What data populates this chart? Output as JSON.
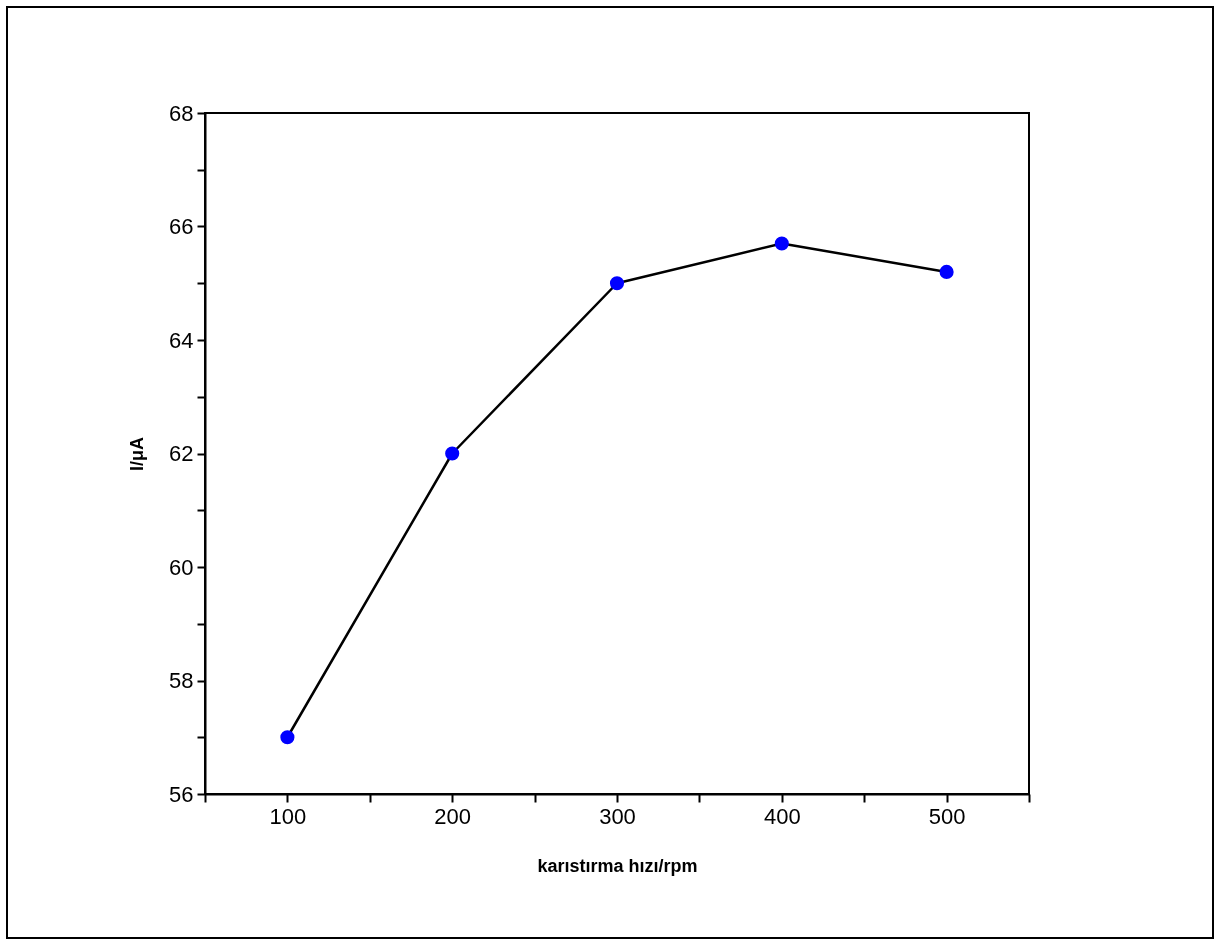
{
  "chart_data": {
    "type": "line",
    "xlabel": "karıstırma hızı/rpm",
    "ylabel": "I/μA",
    "x": [
      100,
      200,
      300,
      400,
      500
    ],
    "series": [
      {
        "color": "#0000ff",
        "values": [
          57,
          62,
          65,
          65.7,
          65.2
        ]
      }
    ],
    "xlim": [
      50,
      550
    ],
    "xticks": [
      {
        "value": 50,
        "label": null
      },
      100,
      {
        "value": 150,
        "label": null
      },
      200,
      {
        "value": 250,
        "label": null
      },
      300,
      {
        "value": 350,
        "label": null
      },
      400,
      {
        "value": 450,
        "label": null
      },
      500,
      {
        "value": 550,
        "label": null
      }
    ],
    "ylim": [
      56,
      68
    ],
    "yticks": [
      56,
      {
        "value": 57,
        "label": null
      },
      58,
      {
        "value": 59,
        "label": null
      },
      60,
      {
        "value": 61,
        "label": null
      },
      62,
      {
        "value": 63,
        "label": null
      },
      64,
      {
        "value": 65,
        "label": null
      },
      66,
      {
        "value": 67,
        "label": null
      },
      68
    ],
    "marker": "circle",
    "grid": false
  }
}
